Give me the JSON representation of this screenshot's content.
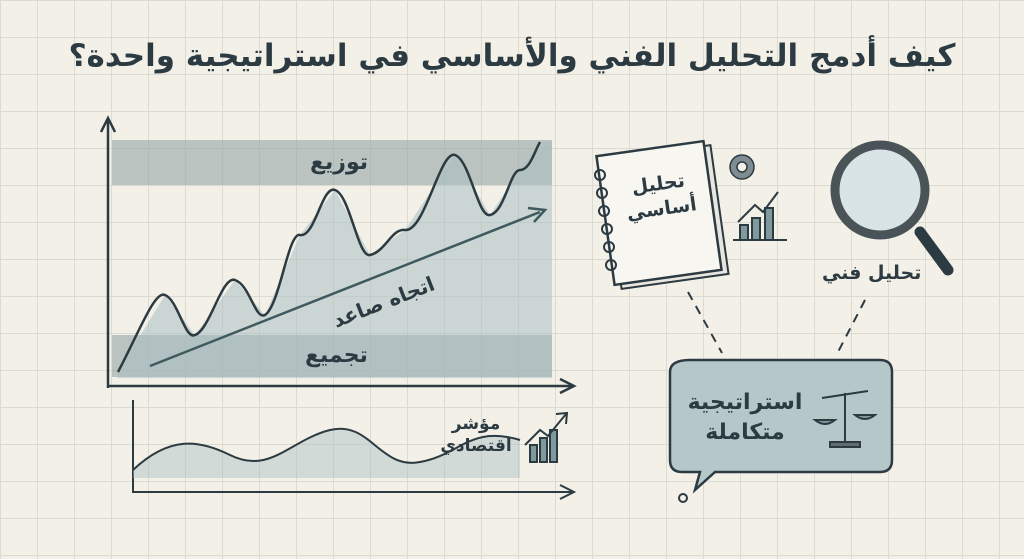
{
  "title": "كيف أدمج التحليل الفني والأساسي في استراتيجية واحدة؟",
  "chart": {
    "distribution_label": "توزيع",
    "uptrend_label": "اتجاه صاعد",
    "accumulation_label": "تجميع",
    "indicator_label_line1": "مؤشر",
    "indicator_label_line2": "اقتصادي"
  },
  "fundamental": {
    "label_line1": "تحليل",
    "label_line2": "أساسي",
    "icons": [
      "notebook-icon",
      "gear-icon",
      "bar-chart-icon"
    ]
  },
  "technical": {
    "label": "تحليل فني",
    "icons": [
      "magnifier-icon"
    ]
  },
  "strategy": {
    "label_line1": "استراتيجية",
    "label_line2": "متكاملة",
    "icons": [
      "scales-icon"
    ]
  },
  "colors": {
    "ink": "#2c3a42",
    "fill": "#a9bfc2",
    "band": "#8d9ea3",
    "background": "#f3f0e7"
  }
}
